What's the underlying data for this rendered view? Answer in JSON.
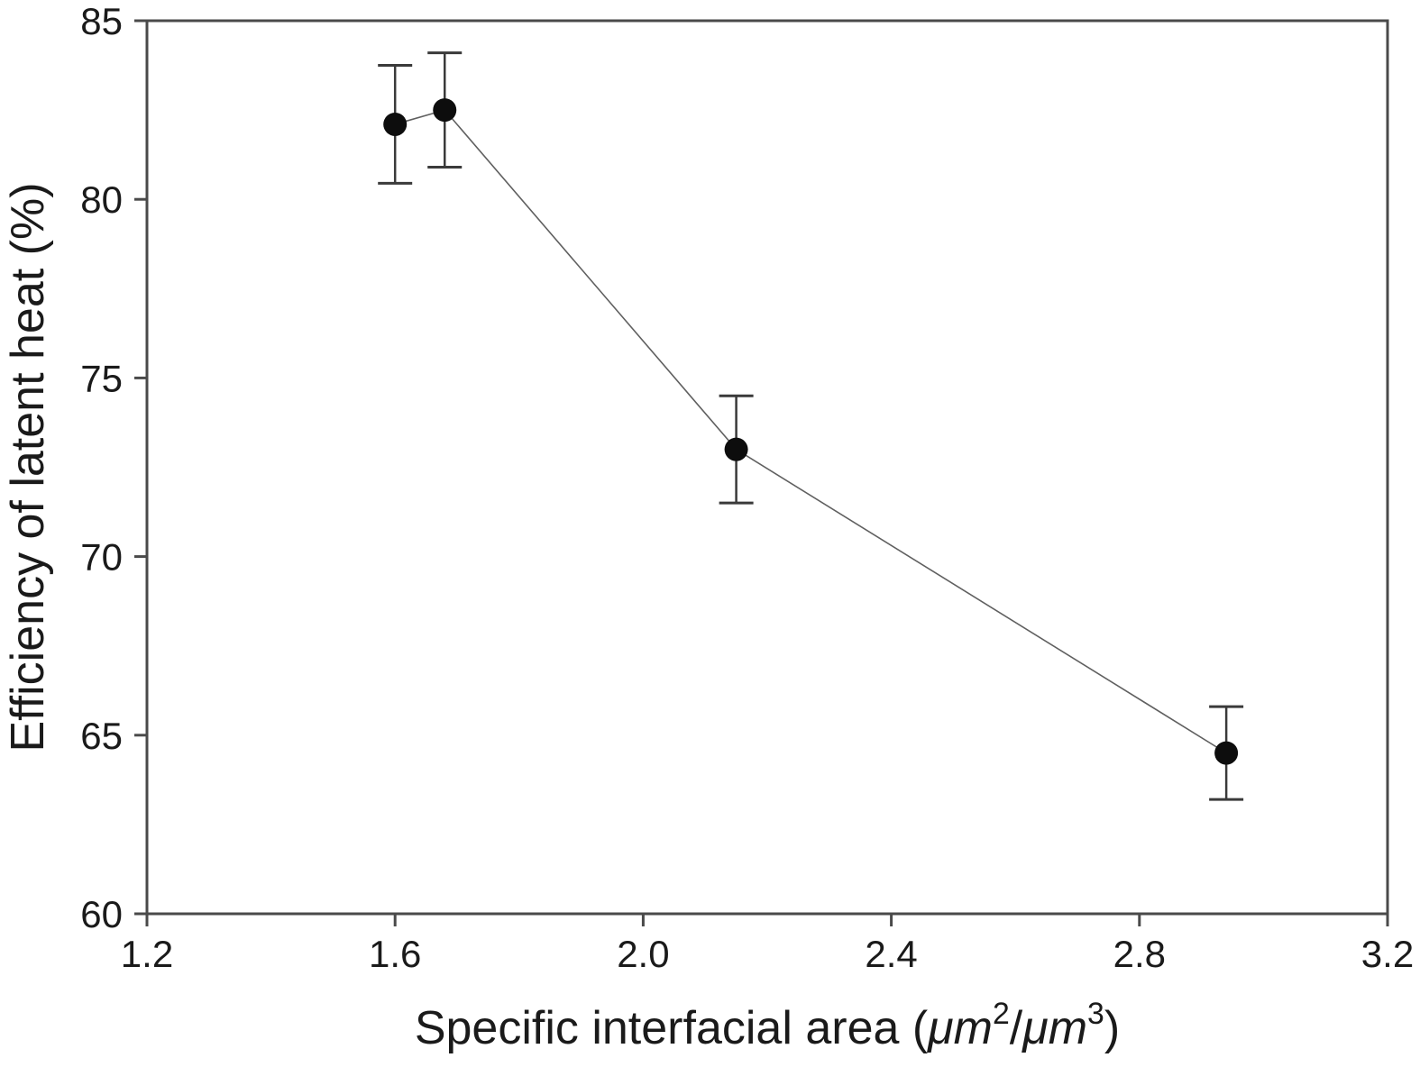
{
  "chart_data": {
    "type": "line",
    "title": "",
    "xlabel": "Specific interfacial area (μm²/μm³)",
    "xlabel_rich": [
      {
        "t": "Specific interfacial area (",
        "style": "normal"
      },
      {
        "t": "μm",
        "style": "italic"
      },
      {
        "t": "2",
        "style": "sup"
      },
      {
        "t": "/",
        "style": "normal"
      },
      {
        "t": "μm",
        "style": "italic"
      },
      {
        "t": "3",
        "style": "sup"
      },
      {
        "t": ")",
        "style": "normal"
      }
    ],
    "ylabel": "Efficiency of latent heat (%)",
    "xlim": [
      1.2,
      3.2
    ],
    "ylim": [
      60,
      85
    ],
    "x_ticks": [
      "1.2",
      "1.6",
      "2.0",
      "2.4",
      "2.8",
      "3.2"
    ],
    "y_ticks": [
      "60",
      "65",
      "70",
      "75",
      "80",
      "85"
    ],
    "grid": false,
    "legend_position": "none",
    "marker": "filled-circle",
    "series": [
      {
        "name": "efficiency-of-latent-heat",
        "points": [
          {
            "x": 1.6,
            "y": 82.1,
            "err": 1.65
          },
          {
            "x": 1.68,
            "y": 82.5,
            "err": 1.6
          },
          {
            "x": 2.15,
            "y": 73.0,
            "err": 1.5
          },
          {
            "x": 2.94,
            "y": 64.5,
            "err": 1.3
          }
        ]
      }
    ],
    "colors": {
      "background": "#ffffff",
      "text": "#1a1a1a",
      "frame": "#4a4a4a",
      "tick": "#4a4a4a",
      "marker": "#0d0d0d",
      "error_bar": "#3a3a3a",
      "line": "#606060"
    }
  }
}
